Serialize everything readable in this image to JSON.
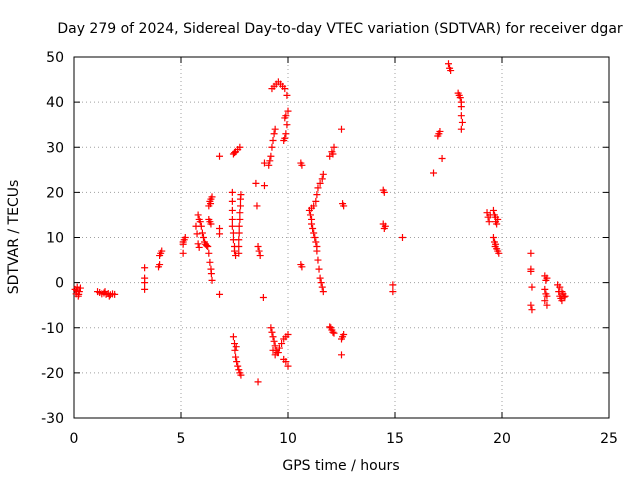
{
  "chart_data": {
    "type": "scatter",
    "title": "Day 279 of 2024, Sidereal Day-to-day VTEC variation (SDTVAR) for receiver dgar",
    "xlabel": "GPS time / hours",
    "ylabel": "SDTVAR / TECUs",
    "xlim": [
      0,
      25
    ],
    "ylim": [
      -30,
      50
    ],
    "xticks": [
      0,
      5,
      10,
      15,
      20,
      25
    ],
    "yticks": [
      -30,
      -20,
      -10,
      0,
      10,
      20,
      30,
      40,
      50
    ],
    "xtick_labels": [
      "0",
      "5",
      "10",
      "15",
      "20",
      "25"
    ],
    "ytick_labels": [
      "-30",
      "-20",
      "-10",
      "0",
      "10",
      "20",
      "30",
      "40",
      "50"
    ],
    "grid": true,
    "marker": "+",
    "series": [
      {
        "name": "SDTVAR",
        "color": "#ff0000",
        "points": [
          [
            0.05,
            -1.5
          ],
          [
            0.1,
            -2.5
          ],
          [
            0.15,
            -1.0
          ],
          [
            0.2,
            -3.0
          ],
          [
            0.25,
            -2.0
          ],
          [
            0.3,
            -1.2
          ],
          [
            0.12,
            -1.8
          ],
          [
            0.22,
            -2.6
          ],
          [
            1.1,
            -2.0
          ],
          [
            1.2,
            -2.2
          ],
          [
            1.3,
            -2.5
          ],
          [
            1.4,
            -2.3
          ],
          [
            1.5,
            -2.6
          ],
          [
            1.6,
            -2.4
          ],
          [
            1.7,
            -2.7
          ],
          [
            1.8,
            -2.5
          ],
          [
            1.9,
            -2.6
          ],
          [
            1.45,
            -2.0
          ],
          [
            1.65,
            -3.0
          ],
          [
            3.3,
            3.3
          ],
          [
            3.3,
            1.0
          ],
          [
            3.3,
            0.0
          ],
          [
            3.3,
            -1.5
          ],
          [
            3.95,
            3.5
          ],
          [
            4.0,
            4.0
          ],
          [
            4.05,
            6.5
          ],
          [
            4.1,
            7.0
          ],
          [
            4.0,
            6.0
          ],
          [
            5.1,
            6.5
          ],
          [
            5.1,
            8.5
          ],
          [
            5.15,
            9.5
          ],
          [
            5.2,
            10.0
          ],
          [
            5.1,
            9.0
          ],
          [
            5.7,
            12.5
          ],
          [
            5.75,
            10.8
          ],
          [
            5.8,
            8.6
          ],
          [
            5.85,
            7.8
          ],
          [
            5.8,
            15.0
          ],
          [
            5.85,
            14.0
          ],
          [
            5.9,
            13.5
          ],
          [
            5.95,
            12.5
          ],
          [
            6.0,
            11.0
          ],
          [
            6.05,
            10.0
          ],
          [
            6.1,
            9.0
          ],
          [
            6.15,
            8.5
          ],
          [
            6.2,
            8.2
          ],
          [
            6.25,
            8.0
          ],
          [
            6.3,
            6.5
          ],
          [
            6.35,
            4.5
          ],
          [
            6.4,
            3.0
          ],
          [
            6.42,
            2.0
          ],
          [
            6.45,
            0.5
          ],
          [
            6.3,
            14.0
          ],
          [
            6.35,
            13.5
          ],
          [
            6.4,
            13.0
          ],
          [
            6.3,
            17.0
          ],
          [
            6.35,
            18.0
          ],
          [
            6.4,
            18.5
          ],
          [
            6.45,
            19.0
          ],
          [
            6.38,
            17.5
          ],
          [
            6.8,
            28.0
          ],
          [
            6.8,
            12.0
          ],
          [
            6.8,
            10.8
          ],
          [
            6.8,
            -2.6
          ],
          [
            7.4,
            20.0
          ],
          [
            7.4,
            18.0
          ],
          [
            7.4,
            16.0
          ],
          [
            7.4,
            14.0
          ],
          [
            7.4,
            12.5
          ],
          [
            7.45,
            11.0
          ],
          [
            7.45,
            9.5
          ],
          [
            7.5,
            8.0
          ],
          [
            7.5,
            7.0
          ],
          [
            7.55,
            6.0
          ],
          [
            7.7,
            6.5
          ],
          [
            7.7,
            8.0
          ],
          [
            7.7,
            9.5
          ],
          [
            7.72,
            11.0
          ],
          [
            7.72,
            12.5
          ],
          [
            7.75,
            14.0
          ],
          [
            7.75,
            15.5
          ],
          [
            7.78,
            17.0
          ],
          [
            7.78,
            18.5
          ],
          [
            7.8,
            19.5
          ],
          [
            7.45,
            28.5
          ],
          [
            7.55,
            29.0
          ],
          [
            7.65,
            29.5
          ],
          [
            7.75,
            30.0
          ],
          [
            7.5,
            28.8
          ],
          [
            7.45,
            -12.0
          ],
          [
            7.5,
            -13.5
          ],
          [
            7.52,
            -15.0
          ],
          [
            7.55,
            -16.5
          ],
          [
            7.6,
            -17.5
          ],
          [
            7.65,
            -18.5
          ],
          [
            7.7,
            -19.3
          ],
          [
            7.75,
            -20.0
          ],
          [
            7.8,
            -20.5
          ],
          [
            7.58,
            -14.2
          ],
          [
            8.5,
            22.0
          ],
          [
            8.55,
            17.0
          ],
          [
            8.6,
            8.0
          ],
          [
            8.65,
            7.0
          ],
          [
            8.7,
            6.0
          ],
          [
            8.6,
            -22.0
          ],
          [
            8.9,
            21.5
          ],
          [
            8.9,
            26.5
          ],
          [
            8.85,
            -3.3
          ],
          [
            9.1,
            26.0
          ],
          [
            9.15,
            27.0
          ],
          [
            9.2,
            28.0
          ],
          [
            9.25,
            30.0
          ],
          [
            9.3,
            31.5
          ],
          [
            9.35,
            33.0
          ],
          [
            9.4,
            34.0
          ],
          [
            9.25,
            43.0
          ],
          [
            9.35,
            43.5
          ],
          [
            9.45,
            44.0
          ],
          [
            9.55,
            44.5
          ],
          [
            9.65,
            44.0
          ],
          [
            9.75,
            43.5
          ],
          [
            9.85,
            43.0
          ],
          [
            9.95,
            41.5
          ],
          [
            9.8,
            31.5
          ],
          [
            9.85,
            32.0
          ],
          [
            9.9,
            33.0
          ],
          [
            9.95,
            35.0
          ],
          [
            9.9,
            37.0
          ],
          [
            10.0,
            38.0
          ],
          [
            9.85,
            36.5
          ],
          [
            9.2,
            -10.0
          ],
          [
            9.25,
            -11.0
          ],
          [
            9.3,
            -12.0
          ],
          [
            9.35,
            -13.0
          ],
          [
            9.4,
            -14.0
          ],
          [
            9.45,
            -15.0
          ],
          [
            9.4,
            -16.0
          ],
          [
            9.5,
            -15.5
          ],
          [
            9.55,
            -15.5
          ],
          [
            9.3,
            -15.0
          ],
          [
            9.6,
            -14.5
          ],
          [
            9.7,
            -13.5
          ],
          [
            9.8,
            -12.5
          ],
          [
            9.9,
            -12.0
          ],
          [
            10.0,
            -11.5
          ],
          [
            9.8,
            -17.0
          ],
          [
            9.9,
            -17.5
          ],
          [
            10.0,
            -18.5
          ],
          [
            10.6,
            26.5
          ],
          [
            10.65,
            26.0
          ],
          [
            10.6,
            4.0
          ],
          [
            10.65,
            3.5
          ],
          [
            11.0,
            16.0
          ],
          [
            11.05,
            15.0
          ],
          [
            11.1,
            14.0
          ],
          [
            11.1,
            13.0
          ],
          [
            11.15,
            12.0
          ],
          [
            11.2,
            11.0
          ],
          [
            11.25,
            10.0
          ],
          [
            11.3,
            9.0
          ],
          [
            11.35,
            8.0
          ],
          [
            11.35,
            7.0
          ],
          [
            11.4,
            5.0
          ],
          [
            11.45,
            3.0
          ],
          [
            11.5,
            1.0
          ],
          [
            11.55,
            0.0
          ],
          [
            11.6,
            -1.0
          ],
          [
            11.65,
            -2.0
          ],
          [
            11.1,
            16.5
          ],
          [
            11.2,
            17.0
          ],
          [
            11.3,
            18.0
          ],
          [
            11.35,
            19.5
          ],
          [
            11.4,
            21.0
          ],
          [
            11.5,
            22.0
          ],
          [
            11.6,
            23.0
          ],
          [
            11.65,
            24.0
          ],
          [
            11.95,
            28.0
          ],
          [
            12.05,
            29.0
          ],
          [
            12.15,
            30.0
          ],
          [
            12.1,
            28.5
          ],
          [
            12.0,
            -10.0
          ],
          [
            12.05,
            -10.5
          ],
          [
            12.1,
            -11.0
          ],
          [
            12.15,
            -11.2
          ],
          [
            11.95,
            -9.8
          ],
          [
            12.5,
            34.0
          ],
          [
            12.55,
            17.5
          ],
          [
            12.6,
            17.0
          ],
          [
            12.5,
            -12.5
          ],
          [
            12.55,
            -12.0
          ],
          [
            12.6,
            -11.5
          ],
          [
            12.5,
            -16.0
          ],
          [
            14.45,
            20.5
          ],
          [
            14.5,
            20.0
          ],
          [
            14.45,
            13.0
          ],
          [
            14.5,
            12.0
          ],
          [
            14.55,
            12.5
          ],
          [
            14.9,
            -0.5
          ],
          [
            14.9,
            -2.0
          ],
          [
            15.35,
            10.0
          ],
          [
            16.8,
            24.3
          ],
          [
            17.0,
            32.5
          ],
          [
            17.05,
            33.0
          ],
          [
            17.1,
            33.5
          ],
          [
            17.2,
            27.5
          ],
          [
            17.5,
            48.5
          ],
          [
            17.55,
            47.5
          ],
          [
            17.6,
            47.0
          ],
          [
            17.95,
            42.0
          ],
          [
            18.0,
            41.5
          ],
          [
            18.05,
            41.0
          ],
          [
            18.1,
            40.0
          ],
          [
            18.1,
            39.0
          ],
          [
            18.1,
            37.0
          ],
          [
            18.15,
            35.5
          ],
          [
            18.1,
            34.0
          ],
          [
            19.3,
            15.5
          ],
          [
            19.35,
            14.5
          ],
          [
            19.4,
            13.5
          ],
          [
            19.45,
            15.0
          ],
          [
            19.6,
            16.0
          ],
          [
            19.65,
            15.0
          ],
          [
            19.7,
            14.5
          ],
          [
            19.7,
            13.5
          ],
          [
            19.75,
            13.0
          ],
          [
            19.8,
            14.0
          ],
          [
            19.6,
            10.0
          ],
          [
            19.65,
            9.0
          ],
          [
            19.7,
            8.5
          ],
          [
            19.75,
            7.5
          ],
          [
            19.8,
            7.0
          ],
          [
            19.85,
            6.5
          ],
          [
            19.68,
            8.0
          ],
          [
            21.35,
            6.5
          ],
          [
            21.35,
            3.0
          ],
          [
            21.35,
            2.5
          ],
          [
            21.4,
            -1.0
          ],
          [
            21.35,
            -5.0
          ],
          [
            21.4,
            -6.0
          ],
          [
            22.0,
            1.5
          ],
          [
            22.05,
            0.5
          ],
          [
            22.1,
            1.0
          ],
          [
            22.0,
            -1.5
          ],
          [
            22.05,
            -2.5
          ],
          [
            22.1,
            -3.0
          ],
          [
            22.0,
            -4.0
          ],
          [
            22.1,
            -5.0
          ],
          [
            22.6,
            -0.5
          ],
          [
            22.65,
            -2.0
          ],
          [
            22.7,
            -3.0
          ],
          [
            22.75,
            -3.5
          ],
          [
            22.8,
            -4.0
          ],
          [
            22.85,
            -2.5
          ],
          [
            22.9,
            -3.2
          ],
          [
            22.95,
            -3.0
          ],
          [
            22.7,
            -1.0
          ],
          [
            22.8,
            -2.0
          ]
        ]
      }
    ]
  }
}
